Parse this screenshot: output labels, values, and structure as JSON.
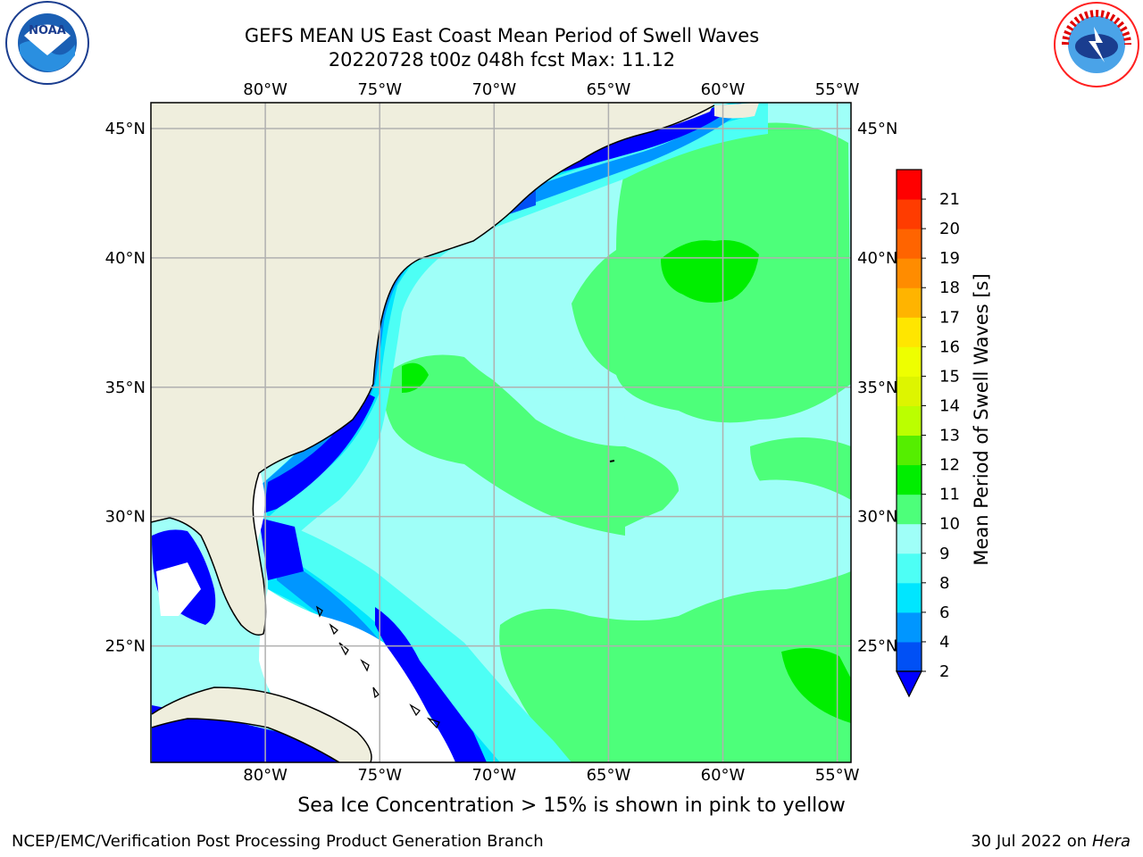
{
  "header": {
    "title_line1": "GEFS MEAN US East Coast Mean Period of Swell Waves",
    "title_line2": "20220728 t00z 048h fcst   Max: 11.12"
  },
  "logos": {
    "left": "NOAA",
    "right": "NATIONAL WEATHER SERVICE"
  },
  "map": {
    "lon_labels": [
      "80°W",
      "75°W",
      "70°W",
      "65°W",
      "60°W",
      "55°W"
    ],
    "lat_labels": [
      "45°N",
      "40°N",
      "35°N",
      "30°N",
      "25°N"
    ],
    "lon_values": [
      -80,
      -75,
      -70,
      -65,
      -60,
      -55
    ],
    "lat_values": [
      45,
      40,
      35,
      30,
      25
    ],
    "extent": {
      "lon_min": -85,
      "lon_max": -54.4,
      "lat_min": 20.5,
      "lat_max": 46
    },
    "colors": {
      "land": "#efeedd",
      "grid": "#b0b0b0",
      "coast": "#000000",
      "no_data": "#ffffff"
    }
  },
  "colorbar": {
    "label": "Mean Period of Swell Waves [s]",
    "ticks": [
      "2",
      "4",
      "6",
      "8",
      "9",
      "10",
      "11",
      "12",
      "13",
      "14",
      "15",
      "16",
      "17",
      "18",
      "19",
      "20",
      "21"
    ],
    "levels": [
      {
        "from": 2,
        "to": 4,
        "color": "#0050f5"
      },
      {
        "from": 4,
        "to": 6,
        "color": "#0096ff"
      },
      {
        "from": 6,
        "to": 8,
        "color": "#00e6ff"
      },
      {
        "from": 8,
        "to": 9,
        "color": "#4dfff5"
      },
      {
        "from": 9,
        "to": 10,
        "color": "#9ffff8"
      },
      {
        "from": 10,
        "to": 11,
        "color": "#4dff7a"
      },
      {
        "from": 11,
        "to": 12,
        "color": "#00ee00"
      },
      {
        "from": 12,
        "to": 13,
        "color": "#55ee00"
      },
      {
        "from": 13,
        "to": 14,
        "color": "#bbff00"
      },
      {
        "from": 14,
        "to": 15,
        "color": "#ddf500"
      },
      {
        "from": 15,
        "to": 16,
        "color": "#eeff00"
      },
      {
        "from": 16,
        "to": 17,
        "color": "#ffe600"
      },
      {
        "from": 17,
        "to": 18,
        "color": "#ffb400"
      },
      {
        "from": 18,
        "to": 19,
        "color": "#ff8c00"
      },
      {
        "from": 19,
        "to": 20,
        "color": "#ff6400"
      },
      {
        "from": 20,
        "to": 21,
        "color": "#ff3c00"
      },
      {
        "from": 21,
        "to": 22,
        "color": "#ff0000"
      }
    ],
    "under_color": "#0000ff"
  },
  "notes": {
    "ice": "Sea Ice Concentration > 15% is shown in pink to yellow"
  },
  "footer": {
    "left": "NCEP/EMC/Verification Post Processing Product Generation Branch",
    "right_date": "30 Jul 2022 on ",
    "right_host": "Hera"
  }
}
